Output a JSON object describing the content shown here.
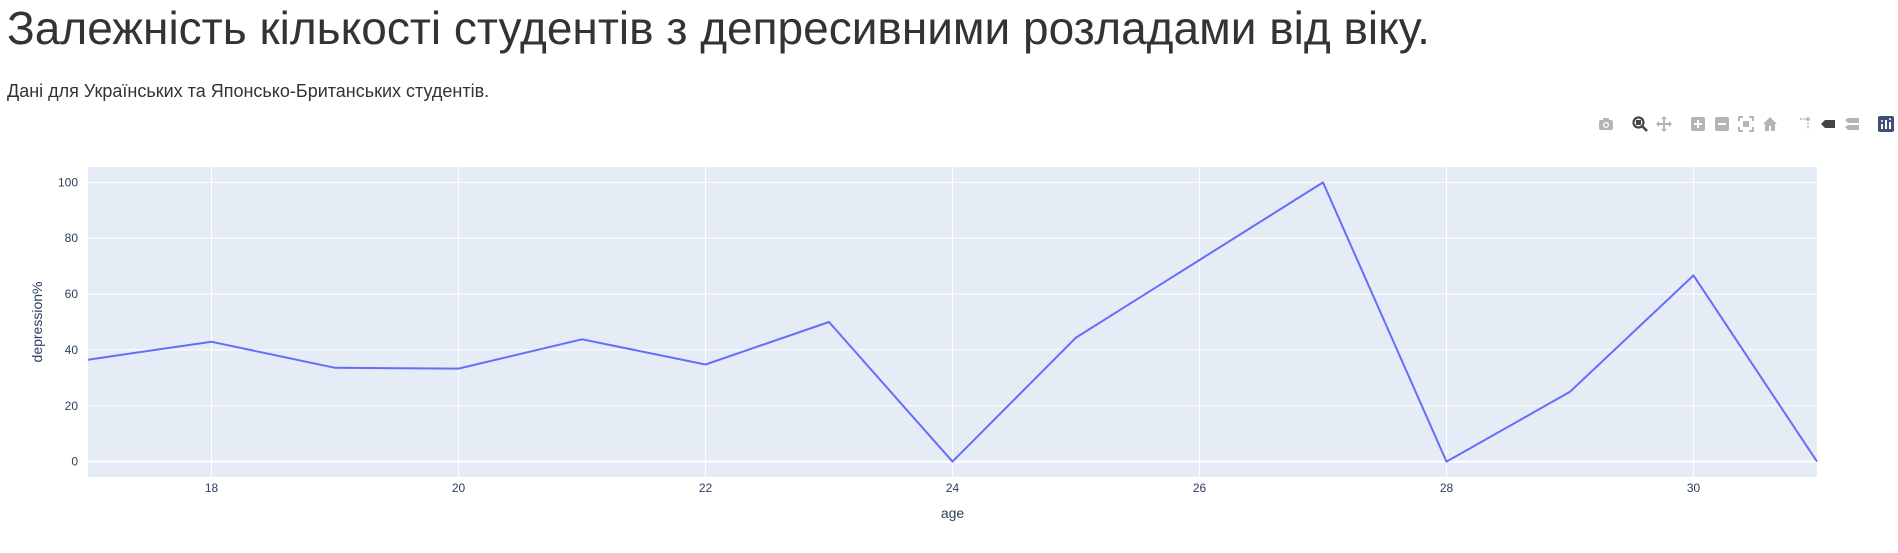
{
  "chart_data": {
    "type": "line",
    "title": "Залежність кількості студентів з депресивними розладами від віку.",
    "subtitle": "Дані для Українських та Японсько-Британських студентів.",
    "xlabel": "age",
    "ylabel": "depression%",
    "xlim": [
      17,
      31
    ],
    "ylim": [
      -5.5,
      105.5
    ],
    "x_ticks": [
      18,
      20,
      22,
      24,
      26,
      28,
      30
    ],
    "y_ticks": [
      0,
      20,
      40,
      60,
      80,
      100
    ],
    "grid": true,
    "colors": {
      "plot_bg": "#E5ECF6",
      "grid": "#ffffff",
      "line": "#636EFA",
      "tick_text": "#2a3f5f"
    },
    "series": [
      {
        "x": [
          17,
          18,
          19,
          20,
          21,
          22,
          23,
          24,
          25,
          26,
          27,
          28,
          29,
          30,
          31
        ],
        "y": [
          36.5,
          42.9,
          33.6,
          33.3,
          43.8,
          34.8,
          50,
          0,
          44.4,
          72.2,
          100,
          0,
          25,
          66.7,
          0
        ]
      }
    ]
  },
  "modebar": {
    "icons": [
      "camera-icon",
      "zoom-icon",
      "pan-icon",
      "zoom-in-icon",
      "zoom-out-icon",
      "autoscale-icon",
      "home-icon",
      "spike-lines-icon",
      "hover-closest-icon",
      "hover-compare-icon",
      "plotly-logo-icon"
    ]
  }
}
